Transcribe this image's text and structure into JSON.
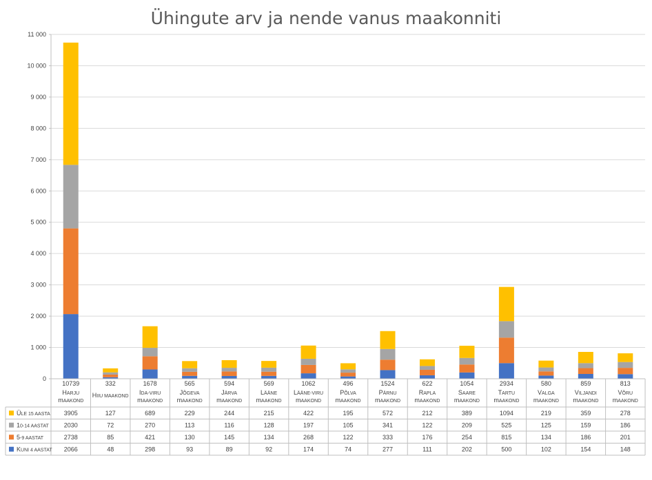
{
  "chart_data": {
    "type": "bar",
    "stacked": true,
    "title": "Ühingute arv ja nende vanus maakonniti",
    "ylim": [
      0,
      11000
    ],
    "ytick_labels": [
      "0",
      "1 000",
      "2 000",
      "3 000",
      "4 000",
      "5 000",
      "6 000",
      "7 000",
      "8 000",
      "9 000",
      "10 000",
      "11 000"
    ],
    "grid": true,
    "legend_position": "bottom-left (data table)",
    "categories": [
      [
        "Harju",
        "maakond"
      ],
      [
        "Hiiu maakond"
      ],
      [
        "Ida-Viru",
        "maakond"
      ],
      [
        "Jõgeva",
        "maakond"
      ],
      [
        "Järva",
        "maakond"
      ],
      [
        "Lääne",
        "maakond"
      ],
      [
        "Lääne-Viru",
        "maakond"
      ],
      [
        "Põlva",
        "maakond"
      ],
      [
        "Pärnu",
        "maakond"
      ],
      [
        "Rapla",
        "maakond"
      ],
      [
        "Saare",
        "maakond"
      ],
      [
        "Tartu",
        "maakond"
      ],
      [
        "Valga",
        "maakond"
      ],
      [
        "Viljandi",
        "maakond"
      ],
      [
        "Võru",
        "maakond"
      ]
    ],
    "totals": [
      "10739",
      "332",
      "1678",
      "565",
      "594",
      "569",
      "1062",
      "496",
      "1524",
      "622",
      "1054",
      "2934",
      "580",
      "859",
      "813"
    ],
    "series": [
      {
        "name": "Kuni 4 aastat",
        "color": "#4472C4",
        "values": [
          2066,
          48,
          298,
          93,
          89,
          92,
          174,
          74,
          277,
          111,
          202,
          500,
          102,
          154,
          148
        ]
      },
      {
        "name": "5-9 aastat",
        "color": "#ED7D31",
        "values": [
          2738,
          85,
          421,
          130,
          145,
          134,
          268,
          122,
          333,
          176,
          254,
          815,
          134,
          186,
          201
        ]
      },
      {
        "name": "10-14 aastat",
        "color": "#A5A5A5",
        "values": [
          2030,
          72,
          270,
          113,
          116,
          128,
          197,
          105,
          341,
          122,
          209,
          525,
          125,
          159,
          186
        ]
      },
      {
        "name": "Üle 15 aasta",
        "color": "#FFC000",
        "values": [
          3905,
          127,
          689,
          229,
          244,
          215,
          422,
          195,
          572,
          212,
          389,
          1094,
          219,
          359,
          278
        ]
      }
    ],
    "table_row_order": [
      3,
      2,
      1,
      0
    ]
  }
}
